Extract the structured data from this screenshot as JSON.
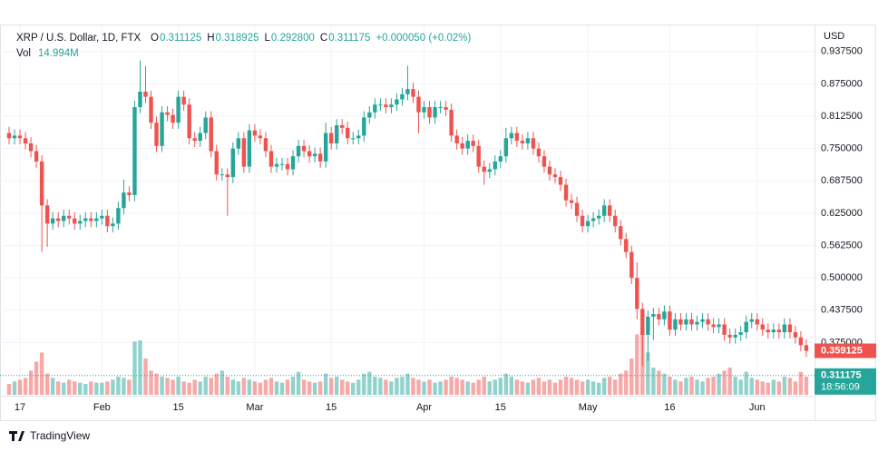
{
  "chart_data": {
    "type": "candlestick",
    "title": "XRP / U.S. Dollar, 1D, FTX",
    "ohlc_legend": [
      {
        "key": "O",
        "text": "0.311125"
      },
      {
        "key": "H",
        "text": "0.318925"
      },
      {
        "key": "L",
        "text": "0.292800"
      },
      {
        "key": "C",
        "text": "0.311175"
      }
    ],
    "change": "+0.000050 (+0.02%)",
    "volume_label": "Vol",
    "volume_text": "14.994M",
    "currency": "USD",
    "brand": "TradingView",
    "up_color": "#26a69a",
    "down_color": "#ef5350",
    "categories": [
      null,
      null,
      "17",
      null,
      null,
      null,
      null,
      null,
      null,
      null,
      null,
      null,
      null,
      null,
      null,
      null,
      null,
      "Feb",
      null,
      null,
      null,
      null,
      null,
      null,
      null,
      null,
      null,
      null,
      null,
      null,
      null,
      "15",
      null,
      null,
      null,
      null,
      null,
      null,
      null,
      null,
      null,
      null,
      null,
      null,
      null,
      "Mar",
      null,
      null,
      null,
      null,
      null,
      null,
      null,
      null,
      null,
      null,
      null,
      null,
      null,
      "15",
      null,
      null,
      null,
      null,
      null,
      null,
      null,
      null,
      null,
      null,
      null,
      null,
      null,
      null,
      null,
      null,
      "Apr",
      null,
      null,
      null,
      null,
      null,
      null,
      null,
      null,
      null,
      null,
      null,
      null,
      null,
      "15",
      null,
      null,
      null,
      null,
      null,
      null,
      null,
      null,
      null,
      null,
      null,
      null,
      null,
      null,
      null,
      "May",
      null,
      null,
      null,
      null,
      null,
      null,
      null,
      null,
      null,
      null,
      null,
      null,
      null,
      null,
      "16",
      null,
      null,
      null,
      null,
      null,
      null,
      null,
      null,
      null,
      null,
      null,
      null,
      null,
      null,
      null,
      "Jun",
      null,
      null,
      null,
      null,
      null,
      null,
      null,
      null,
      null
    ],
    "open": [
      0.78,
      0.77,
      0.775,
      0.77,
      0.76,
      0.745,
      0.725,
      0.64,
      0.605,
      0.615,
      0.61,
      0.62,
      0.615,
      0.605,
      0.61,
      0.615,
      0.61,
      0.615,
      0.62,
      0.6,
      0.605,
      0.635,
      0.665,
      0.66,
      0.83,
      0.86,
      0.85,
      0.8,
      0.755,
      0.82,
      0.815,
      0.8,
      0.85,
      0.835,
      0.77,
      0.765,
      0.78,
      0.81,
      0.745,
      0.7,
      0.7,
      0.695,
      0.75,
      0.77,
      0.715,
      0.785,
      0.775,
      0.77,
      0.745,
      0.715,
      0.72,
      0.72,
      0.71,
      0.735,
      0.755,
      0.745,
      0.735,
      0.74,
      0.725,
      0.78,
      0.76,
      0.795,
      0.79,
      0.77,
      0.77,
      0.775,
      0.81,
      0.82,
      0.835,
      0.835,
      0.83,
      0.835,
      0.845,
      0.855,
      0.865,
      0.85,
      0.82,
      0.83,
      0.81,
      0.83,
      0.83,
      0.825,
      0.775,
      0.76,
      0.75,
      0.765,
      0.755,
      0.715,
      0.705,
      0.71,
      0.725,
      0.735,
      0.77,
      0.78,
      0.765,
      0.76,
      0.77,
      0.75,
      0.735,
      0.715,
      0.7,
      0.695,
      0.68,
      0.65,
      0.645,
      0.62,
      0.6,
      0.61,
      0.615,
      0.62,
      0.64,
      0.62,
      0.6,
      0.575,
      0.55,
      0.5,
      0.44,
      0.39,
      0.425,
      0.43,
      0.42,
      0.435,
      0.4,
      0.42,
      0.41,
      0.42,
      0.41,
      0.415,
      0.42,
      0.41,
      0.405,
      0.41,
      0.39,
      0.385,
      0.39,
      0.395,
      0.415,
      0.42,
      0.41,
      0.4,
      0.395,
      0.4,
      0.395,
      0.41,
      0.395,
      0.385,
      0.37
    ],
    "high": [
      0.792,
      0.787,
      0.787,
      0.782,
      0.772,
      0.757,
      0.737,
      0.652,
      0.627,
      0.627,
      0.632,
      0.632,
      0.627,
      0.622,
      0.627,
      0.627,
      0.627,
      0.632,
      0.632,
      0.617,
      0.647,
      0.69,
      0.677,
      0.842,
      0.92,
      0.91,
      0.862,
      0.812,
      0.832,
      0.832,
      0.827,
      0.862,
      0.862,
      0.847,
      0.782,
      0.792,
      0.822,
      0.822,
      0.757,
      0.712,
      0.712,
      0.762,
      0.782,
      0.782,
      0.797,
      0.797,
      0.787,
      0.782,
      0.757,
      0.732,
      0.732,
      0.732,
      0.747,
      0.767,
      0.767,
      0.757,
      0.752,
      0.752,
      0.8,
      0.792,
      0.807,
      0.807,
      0.802,
      0.782,
      0.787,
      0.822,
      0.832,
      0.847,
      0.847,
      0.847,
      0.847,
      0.857,
      0.867,
      0.91,
      0.877,
      0.862,
      0.842,
      0.842,
      0.842,
      0.842,
      0.842,
      0.837,
      0.787,
      0.772,
      0.777,
      0.777,
      0.767,
      0.727,
      0.722,
      0.737,
      0.747,
      0.79,
      0.792,
      0.792,
      0.777,
      0.782,
      0.782,
      0.762,
      0.747,
      0.727,
      0.712,
      0.707,
      0.692,
      0.662,
      0.657,
      0.632,
      0.622,
      0.627,
      0.632,
      0.652,
      0.652,
      0.632,
      0.612,
      0.587,
      0.562,
      0.53,
      0.452,
      0.437,
      0.442,
      0.442,
      0.447,
      0.447,
      0.432,
      0.432,
      0.432,
      0.432,
      0.427,
      0.432,
      0.432,
      0.422,
      0.422,
      0.422,
      0.402,
      0.402,
      0.407,
      0.427,
      0.432,
      0.432,
      0.422,
      0.412,
      0.412,
      0.412,
      0.422,
      0.422,
      0.407,
      0.397,
      0.382
    ],
    "low": [
      0.758,
      0.758,
      0.758,
      0.748,
      0.733,
      0.713,
      0.55,
      0.56,
      0.593,
      0.598,
      0.598,
      0.603,
      0.593,
      0.593,
      0.598,
      0.598,
      0.598,
      0.603,
      0.588,
      0.588,
      0.593,
      0.623,
      0.648,
      0.648,
      0.818,
      0.838,
      0.788,
      0.743,
      0.743,
      0.803,
      0.788,
      0.788,
      0.823,
      0.758,
      0.753,
      0.753,
      0.768,
      0.733,
      0.688,
      0.688,
      0.62,
      0.683,
      0.738,
      0.703,
      0.703,
      0.763,
      0.758,
      0.733,
      0.703,
      0.703,
      0.708,
      0.698,
      0.698,
      0.723,
      0.733,
      0.723,
      0.723,
      0.713,
      0.713,
      0.748,
      0.748,
      0.778,
      0.758,
      0.758,
      0.758,
      0.763,
      0.798,
      0.808,
      0.823,
      0.818,
      0.818,
      0.823,
      0.833,
      0.843,
      0.838,
      0.78,
      0.808,
      0.798,
      0.798,
      0.818,
      0.813,
      0.763,
      0.748,
      0.738,
      0.738,
      0.743,
      0.703,
      0.68,
      0.693,
      0.698,
      0.713,
      0.723,
      0.758,
      0.753,
      0.748,
      0.748,
      0.738,
      0.723,
      0.703,
      0.688,
      0.683,
      0.668,
      0.638,
      0.633,
      0.608,
      0.588,
      0.588,
      0.598,
      0.603,
      0.608,
      0.608,
      0.588,
      0.563,
      0.538,
      0.488,
      0.42,
      0.33,
      0.34,
      0.38,
      0.408,
      0.408,
      0.388,
      0.388,
      0.398,
      0.398,
      0.398,
      0.398,
      0.403,
      0.398,
      0.393,
      0.393,
      0.378,
      0.373,
      0.373,
      0.378,
      0.383,
      0.403,
      0.398,
      0.388,
      0.383,
      0.383,
      0.383,
      0.383,
      0.383,
      0.373,
      0.358,
      0.347
    ],
    "close": [
      0.77,
      0.775,
      0.77,
      0.76,
      0.745,
      0.725,
      0.64,
      0.605,
      0.615,
      0.61,
      0.62,
      0.615,
      0.605,
      0.61,
      0.615,
      0.61,
      0.615,
      0.62,
      0.6,
      0.605,
      0.635,
      0.665,
      0.66,
      0.83,
      0.86,
      0.85,
      0.8,
      0.755,
      0.82,
      0.815,
      0.8,
      0.85,
      0.835,
      0.77,
      0.765,
      0.78,
      0.81,
      0.745,
      0.7,
      0.7,
      0.695,
      0.75,
      0.77,
      0.715,
      0.785,
      0.775,
      0.77,
      0.745,
      0.715,
      0.72,
      0.72,
      0.71,
      0.735,
      0.755,
      0.745,
      0.735,
      0.74,
      0.725,
      0.78,
      0.76,
      0.795,
      0.79,
      0.77,
      0.77,
      0.775,
      0.81,
      0.82,
      0.835,
      0.835,
      0.83,
      0.835,
      0.845,
      0.855,
      0.865,
      0.85,
      0.82,
      0.83,
      0.81,
      0.83,
      0.83,
      0.825,
      0.775,
      0.76,
      0.75,
      0.765,
      0.755,
      0.715,
      0.705,
      0.71,
      0.725,
      0.735,
      0.77,
      0.78,
      0.765,
      0.76,
      0.77,
      0.75,
      0.735,
      0.715,
      0.7,
      0.695,
      0.68,
      0.65,
      0.645,
      0.62,
      0.6,
      0.61,
      0.615,
      0.62,
      0.64,
      0.62,
      0.6,
      0.575,
      0.55,
      0.5,
      0.44,
      0.39,
      0.425,
      0.43,
      0.42,
      0.435,
      0.4,
      0.42,
      0.41,
      0.42,
      0.41,
      0.415,
      0.42,
      0.41,
      0.405,
      0.41,
      0.39,
      0.385,
      0.39,
      0.395,
      0.415,
      0.42,
      0.41,
      0.4,
      0.395,
      0.4,
      0.395,
      0.41,
      0.395,
      0.385,
      0.37,
      0.359
    ],
    "volume": [
      18,
      22,
      25,
      28,
      40,
      55,
      70,
      35,
      28,
      22,
      20,
      25,
      22,
      20,
      18,
      22,
      20,
      20,
      22,
      25,
      30,
      28,
      25,
      88,
      90,
      60,
      40,
      35,
      30,
      28,
      25,
      30,
      22,
      20,
      25,
      22,
      30,
      28,
      35,
      40,
      30,
      25,
      22,
      28,
      25,
      22,
      20,
      25,
      28,
      22,
      20,
      25,
      30,
      38,
      25,
      22,
      20,
      22,
      35,
      28,
      30,
      25,
      22,
      20,
      25,
      35,
      38,
      30,
      28,
      25,
      22,
      28,
      30,
      35,
      28,
      25,
      22,
      25,
      20,
      22,
      25,
      30,
      28,
      25,
      22,
      20,
      25,
      30,
      22,
      25,
      28,
      35,
      30,
      25,
      22,
      20,
      25,
      28,
      22,
      25,
      20,
      25,
      30,
      28,
      25,
      22,
      25,
      22,
      20,
      28,
      30,
      25,
      35,
      40,
      60,
      100,
      110,
      70,
      45,
      40,
      35,
      30,
      25,
      22,
      28,
      30,
      25,
      22,
      28,
      30,
      35,
      40,
      45,
      30,
      25,
      38,
      28,
      25,
      22,
      20,
      25,
      22,
      30,
      28,
      22,
      38,
      30
    ],
    "volume_lim": [
      0,
      120
    ],
    "ylim": [
      0.274,
      0.988
    ],
    "yticks": [
      {
        "value": 0.375,
        "label": "0.375000"
      },
      {
        "value": 0.4375,
        "label": "0.437500"
      },
      {
        "value": 0.5,
        "label": "0.500000"
      },
      {
        "value": 0.5625,
        "label": "0.562500"
      },
      {
        "value": 0.625,
        "label": "0.625000"
      },
      {
        "value": 0.6875,
        "label": "0.687500"
      },
      {
        "value": 0.75,
        "label": "0.750000"
      },
      {
        "value": 0.8125,
        "label": "0.812500"
      },
      {
        "value": 0.875,
        "label": "0.875000"
      },
      {
        "value": 0.9375,
        "label": "0.937500"
      }
    ],
    "grid": true,
    "price_tags": [
      {
        "value": 0.359125,
        "color": "#ef5350"
      },
      {
        "value": 0.311175,
        "color": "#26a69a",
        "countdown": "18:56:09"
      }
    ]
  }
}
